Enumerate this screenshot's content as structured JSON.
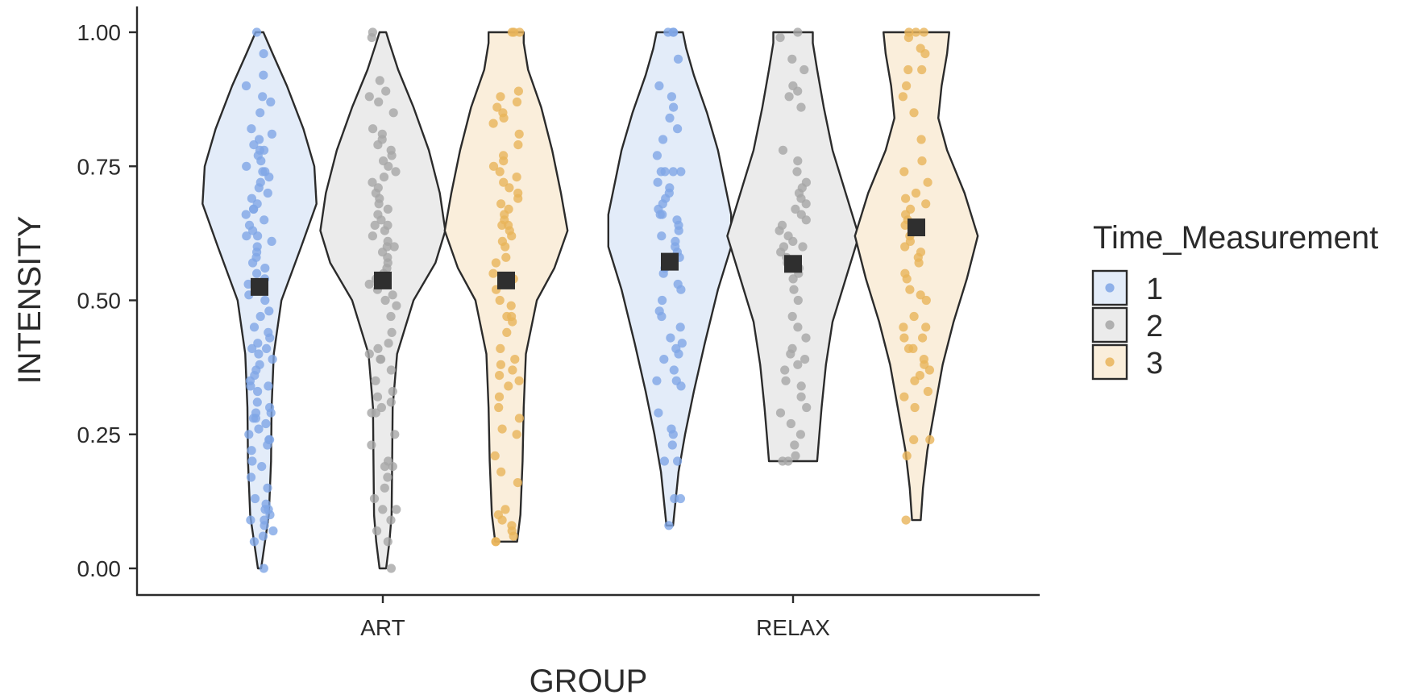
{
  "chart_data": {
    "type": "violin",
    "xlabel": "GROUP",
    "ylabel": "INTENSITY",
    "ylim": [
      0,
      1
    ],
    "yticks": [
      "0.00",
      "0.25",
      "0.50",
      "0.75",
      "1.00"
    ],
    "categories": [
      "ART",
      "RELAX"
    ],
    "legend": {
      "title": "Time_Measurement",
      "placement": "right",
      "entries": [
        "1",
        "2",
        "3"
      ]
    },
    "colors": {
      "1": {
        "fill": "#e3ecf9",
        "point": "#7fa6e6"
      },
      "2": {
        "fill": "#ebebeb",
        "point": "#a6a6a6"
      },
      "3": {
        "fill": "#faeedb",
        "point": "#e9b45a"
      },
      "mean": "#2f2f2f",
      "outline": "#2b2b2b"
    },
    "groups": [
      {
        "category": "ART",
        "time": "1",
        "mean": 0.525,
        "range": [
          0.0,
          1.0
        ],
        "density": [
          [
            0.0,
            0.015
          ],
          [
            0.05,
            0.05
          ],
          [
            0.1,
            0.085
          ],
          [
            0.2,
            0.105
          ],
          [
            0.3,
            0.11
          ],
          [
            0.4,
            0.13
          ],
          [
            0.5,
            0.2
          ],
          [
            0.6,
            0.38
          ],
          [
            0.68,
            0.52
          ],
          [
            0.75,
            0.5
          ],
          [
            0.82,
            0.4
          ],
          [
            0.9,
            0.25
          ],
          [
            0.96,
            0.12
          ],
          [
            1.0,
            0.035
          ]
        ],
        "points": [
          0.0,
          0.05,
          0.06,
          0.07,
          0.08,
          0.09,
          0.09,
          0.1,
          0.11,
          0.11,
          0.12,
          0.13,
          0.15,
          0.17,
          0.19,
          0.2,
          0.22,
          0.23,
          0.24,
          0.24,
          0.25,
          0.26,
          0.27,
          0.28,
          0.28,
          0.29,
          0.29,
          0.3,
          0.31,
          0.33,
          0.34,
          0.34,
          0.35,
          0.36,
          0.37,
          0.38,
          0.39,
          0.4,
          0.41,
          0.41,
          0.42,
          0.43,
          0.44,
          0.45,
          0.47,
          0.48,
          0.5,
          0.51,
          0.52,
          0.53,
          0.54,
          0.55,
          0.56,
          0.57,
          0.58,
          0.59,
          0.6,
          0.61,
          0.62,
          0.62,
          0.63,
          0.64,
          0.65,
          0.66,
          0.67,
          0.67,
          0.68,
          0.69,
          0.7,
          0.71,
          0.72,
          0.73,
          0.74,
          0.74,
          0.75,
          0.76,
          0.77,
          0.78,
          0.78,
          0.79,
          0.8,
          0.81,
          0.82,
          0.85,
          0.87,
          0.88,
          0.9,
          0.92,
          0.96,
          1.0
        ]
      },
      {
        "category": "ART",
        "time": "2",
        "mean": 0.537,
        "range": [
          0.0,
          1.0
        ],
        "density": [
          [
            0.0,
            0.03
          ],
          [
            0.05,
            0.06
          ],
          [
            0.1,
            0.08
          ],
          [
            0.2,
            0.085
          ],
          [
            0.3,
            0.09
          ],
          [
            0.4,
            0.13
          ],
          [
            0.5,
            0.28
          ],
          [
            0.57,
            0.48
          ],
          [
            0.63,
            0.57
          ],
          [
            0.7,
            0.52
          ],
          [
            0.78,
            0.42
          ],
          [
            0.86,
            0.28
          ],
          [
            0.93,
            0.14
          ],
          [
            0.98,
            0.06
          ],
          [
            1.0,
            0.03
          ]
        ],
        "points": [
          0.0,
          0.05,
          0.07,
          0.09,
          0.11,
          0.11,
          0.13,
          0.15,
          0.17,
          0.19,
          0.19,
          0.2,
          0.23,
          0.25,
          0.29,
          0.29,
          0.3,
          0.31,
          0.32,
          0.33,
          0.35,
          0.37,
          0.39,
          0.39,
          0.4,
          0.41,
          0.42,
          0.44,
          0.47,
          0.49,
          0.5,
          0.51,
          0.52,
          0.53,
          0.54,
          0.55,
          0.56,
          0.57,
          0.58,
          0.59,
          0.6,
          0.6,
          0.61,
          0.62,
          0.63,
          0.64,
          0.64,
          0.65,
          0.66,
          0.67,
          0.68,
          0.69,
          0.7,
          0.71,
          0.72,
          0.73,
          0.74,
          0.75,
          0.76,
          0.77,
          0.78,
          0.79,
          0.8,
          0.81,
          0.82,
          0.85,
          0.87,
          0.88,
          0.89,
          0.91,
          0.99,
          1.0
        ]
      },
      {
        "category": "ART",
        "time": "3",
        "mean": 0.537,
        "range": [
          0.05,
          1.0
        ],
        "density": [
          [
            0.05,
            0.1
          ],
          [
            0.1,
            0.13
          ],
          [
            0.2,
            0.15
          ],
          [
            0.3,
            0.16
          ],
          [
            0.4,
            0.18
          ],
          [
            0.5,
            0.28
          ],
          [
            0.56,
            0.44
          ],
          [
            0.63,
            0.56
          ],
          [
            0.7,
            0.5
          ],
          [
            0.78,
            0.42
          ],
          [
            0.86,
            0.32
          ],
          [
            0.93,
            0.2
          ],
          [
            0.98,
            0.16
          ],
          [
            1.0,
            0.16
          ]
        ],
        "points": [
          0.05,
          0.05,
          0.06,
          0.07,
          0.08,
          0.09,
          0.1,
          0.11,
          0.16,
          0.18,
          0.21,
          0.25,
          0.26,
          0.28,
          0.3,
          0.32,
          0.34,
          0.35,
          0.36,
          0.37,
          0.38,
          0.39,
          0.41,
          0.44,
          0.46,
          0.47,
          0.47,
          0.49,
          0.5,
          0.52,
          0.54,
          0.55,
          0.57,
          0.58,
          0.6,
          0.61,
          0.62,
          0.63,
          0.64,
          0.64,
          0.65,
          0.66,
          0.67,
          0.68,
          0.69,
          0.7,
          0.71,
          0.72,
          0.73,
          0.74,
          0.75,
          0.76,
          0.77,
          0.79,
          0.81,
          0.83,
          0.84,
          0.85,
          0.86,
          0.87,
          0.88,
          0.89,
          1.0,
          1.0,
          1.0
        ]
      },
      {
        "category": "RELAX",
        "time": "1",
        "mean": 0.572,
        "range": [
          0.08,
          1.0
        ],
        "density": [
          [
            0.08,
            0.03
          ],
          [
            0.12,
            0.05
          ],
          [
            0.18,
            0.08
          ],
          [
            0.25,
            0.14
          ],
          [
            0.33,
            0.22
          ],
          [
            0.42,
            0.32
          ],
          [
            0.52,
            0.44
          ],
          [
            0.6,
            0.56
          ],
          [
            0.66,
            0.56
          ],
          [
            0.72,
            0.5
          ],
          [
            0.78,
            0.44
          ],
          [
            0.85,
            0.34
          ],
          [
            0.92,
            0.22
          ],
          [
            0.97,
            0.15
          ],
          [
            1.0,
            0.12
          ]
        ],
        "points": [
          0.08,
          0.13,
          0.13,
          0.2,
          0.2,
          0.23,
          0.25,
          0.26,
          0.29,
          0.34,
          0.35,
          0.35,
          0.37,
          0.39,
          0.4,
          0.41,
          0.42,
          0.43,
          0.45,
          0.47,
          0.48,
          0.5,
          0.52,
          0.53,
          0.55,
          0.56,
          0.58,
          0.59,
          0.6,
          0.61,
          0.62,
          0.63,
          0.64,
          0.65,
          0.66,
          0.66,
          0.67,
          0.68,
          0.69,
          0.7,
          0.71,
          0.72,
          0.74,
          0.74,
          0.74,
          0.74,
          0.77,
          0.8,
          0.82,
          0.84,
          0.86,
          0.88,
          0.9,
          0.95,
          1.0,
          1.0,
          1.0
        ]
      },
      {
        "category": "RELAX",
        "time": "2",
        "mean": 0.568,
        "range": [
          0.2,
          1.0
        ],
        "density": [
          [
            0.2,
            0.22
          ],
          [
            0.25,
            0.24
          ],
          [
            0.3,
            0.26
          ],
          [
            0.38,
            0.3
          ],
          [
            0.46,
            0.36
          ],
          [
            0.54,
            0.48
          ],
          [
            0.62,
            0.6
          ],
          [
            0.7,
            0.48
          ],
          [
            0.78,
            0.36
          ],
          [
            0.86,
            0.28
          ],
          [
            0.93,
            0.22
          ],
          [
            0.98,
            0.18
          ],
          [
            1.0,
            0.18
          ]
        ],
        "points": [
          0.2,
          0.2,
          0.21,
          0.23,
          0.25,
          0.27,
          0.29,
          0.3,
          0.32,
          0.34,
          0.35,
          0.37,
          0.38,
          0.39,
          0.4,
          0.41,
          0.43,
          0.45,
          0.47,
          0.5,
          0.52,
          0.54,
          0.55,
          0.56,
          0.57,
          0.58,
          0.59,
          0.6,
          0.6,
          0.61,
          0.62,
          0.63,
          0.64,
          0.65,
          0.66,
          0.67,
          0.68,
          0.69,
          0.7,
          0.71,
          0.72,
          0.74,
          0.76,
          0.78,
          0.86,
          0.88,
          0.89,
          0.9,
          0.93,
          0.95,
          0.99,
          1.0
        ]
      },
      {
        "category": "RELAX",
        "time": "3",
        "mean": 0.636,
        "range": [
          0.09,
          1.0
        ],
        "density": [
          [
            0.09,
            0.04
          ],
          [
            0.15,
            0.06
          ],
          [
            0.22,
            0.1
          ],
          [
            0.3,
            0.17
          ],
          [
            0.38,
            0.24
          ],
          [
            0.46,
            0.34
          ],
          [
            0.54,
            0.46
          ],
          [
            0.62,
            0.56
          ],
          [
            0.7,
            0.44
          ],
          [
            0.78,
            0.28
          ],
          [
            0.84,
            0.2
          ],
          [
            0.9,
            0.23
          ],
          [
            0.96,
            0.28
          ],
          [
            1.0,
            0.3
          ]
        ],
        "points": [
          0.09,
          0.21,
          0.24,
          0.24,
          0.3,
          0.32,
          0.33,
          0.35,
          0.36,
          0.37,
          0.38,
          0.39,
          0.41,
          0.41,
          0.43,
          0.43,
          0.45,
          0.45,
          0.47,
          0.5,
          0.51,
          0.52,
          0.54,
          0.55,
          0.57,
          0.58,
          0.59,
          0.6,
          0.61,
          0.62,
          0.64,
          0.65,
          0.66,
          0.67,
          0.68,
          0.69,
          0.7,
          0.72,
          0.74,
          0.76,
          0.8,
          0.85,
          0.88,
          0.9,
          0.93,
          0.93,
          0.96,
          0.97,
          0.99,
          1.0,
          1.0,
          1.0
        ]
      }
    ]
  }
}
